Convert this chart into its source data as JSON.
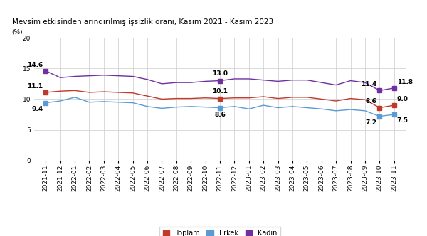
{
  "title": "Mevsim etkisinden arındırılmış işsizlik oranı, Kasım 2021 - Kasım 2023",
  "ylabel": "(%)",
  "x_labels": [
    "2021-11",
    "2021-12",
    "2022-01",
    "2022-02",
    "2022-03",
    "2022-04",
    "2022-05",
    "2022-06",
    "2022-07",
    "2022-08",
    "2022-09",
    "2022-10",
    "2022-11",
    "2022-12",
    "2023-01",
    "2023-02",
    "2023-03",
    "2023-04",
    "2023-05",
    "2023-06",
    "2023-07",
    "2023-08",
    "2023-09",
    "2023-10",
    "2023-11"
  ],
  "toplam": [
    11.1,
    11.3,
    11.4,
    11.1,
    11.2,
    11.1,
    11.0,
    10.5,
    10.0,
    10.1,
    10.1,
    10.2,
    10.1,
    10.2,
    10.2,
    10.4,
    10.1,
    10.3,
    10.3,
    10.0,
    9.7,
    10.1,
    9.9,
    8.6,
    9.0
  ],
  "erkek": [
    9.4,
    9.7,
    10.3,
    9.5,
    9.6,
    9.5,
    9.4,
    8.8,
    8.5,
    8.7,
    8.8,
    8.7,
    8.6,
    8.8,
    8.4,
    9.0,
    8.6,
    8.8,
    8.6,
    8.4,
    8.1,
    8.3,
    8.1,
    7.2,
    7.5
  ],
  "kadin": [
    14.6,
    13.5,
    13.7,
    13.8,
    13.9,
    13.8,
    13.7,
    13.2,
    12.5,
    12.7,
    12.7,
    12.9,
    13.0,
    13.3,
    13.3,
    13.1,
    12.9,
    13.1,
    13.1,
    12.7,
    12.3,
    13.0,
    12.7,
    11.4,
    11.8
  ],
  "toplam_color": "#c0392b",
  "erkek_color": "#5b9bd5",
  "kadin_color": "#7030a0",
  "annotation_indices": [
    0,
    12,
    23,
    24
  ],
  "annotation_fontsize": 6.5,
  "ylim": [
    0,
    20
  ],
  "yticks": [
    0,
    5,
    10,
    15,
    20
  ],
  "legend_labels": [
    "Toplam",
    "Erkek",
    "Kadın"
  ],
  "background_color": "#ffffff",
  "grid_color": "#cccccc",
  "title_fontsize": 7.5,
  "tick_fontsize": 6.5
}
